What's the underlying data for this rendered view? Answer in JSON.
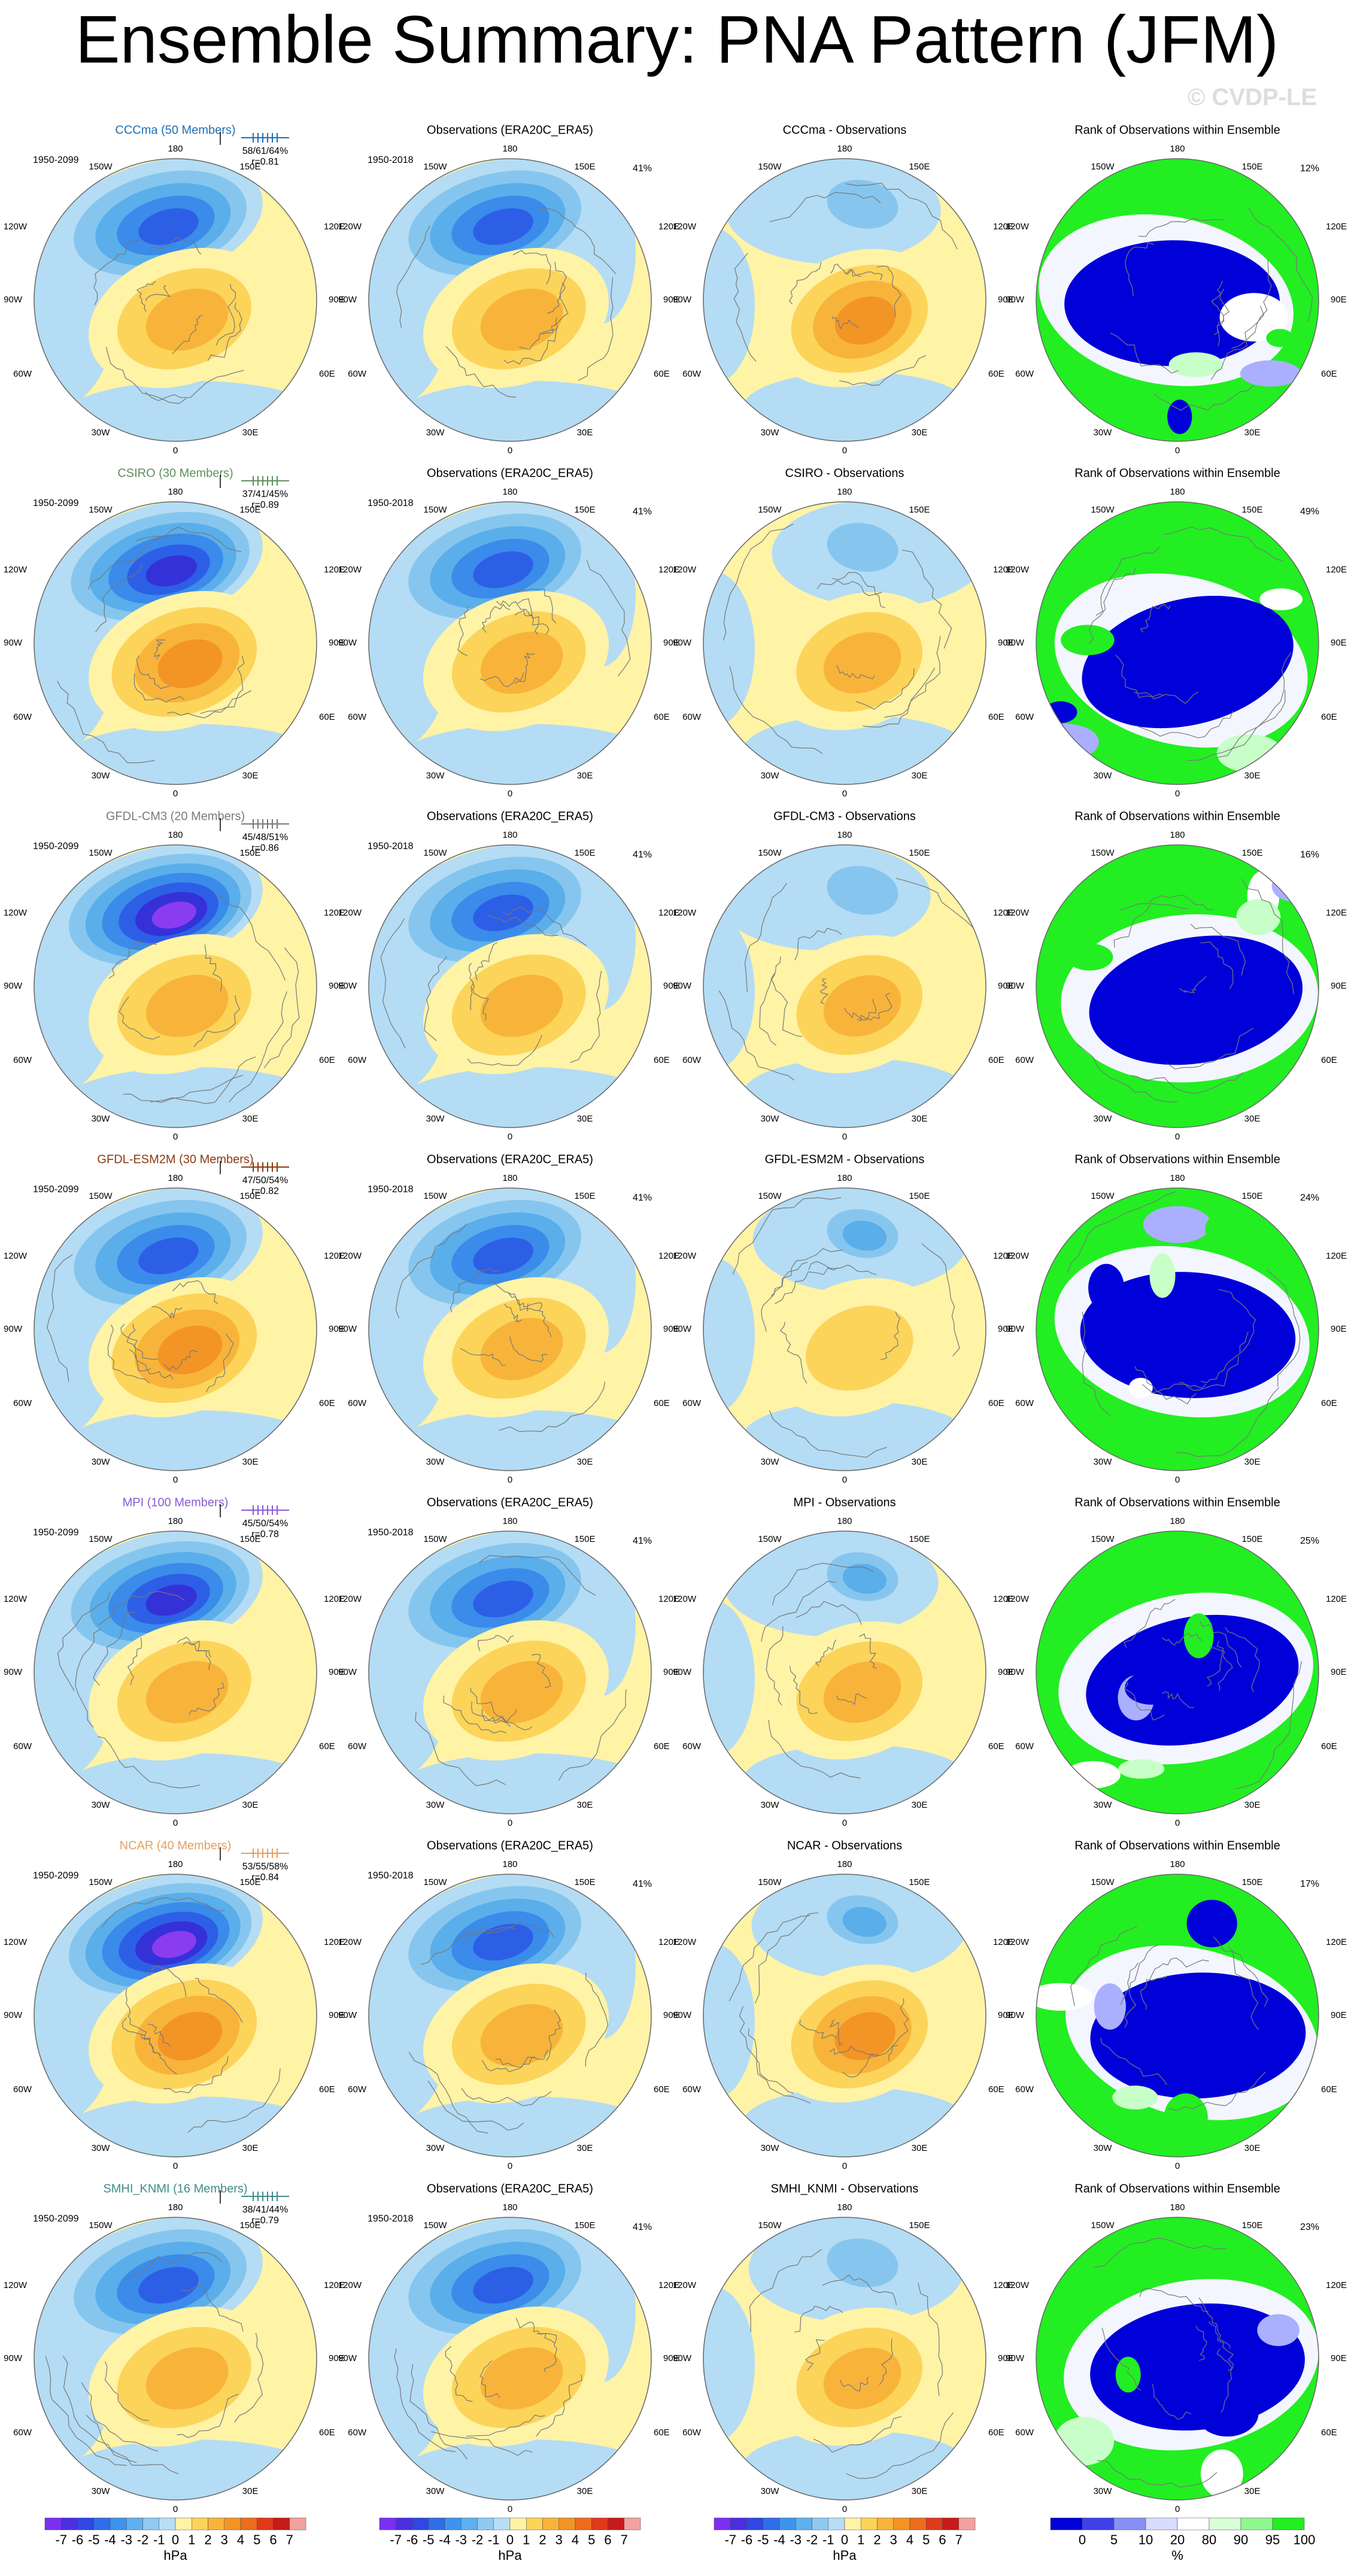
{
  "title": "Ensemble Summary: PNA Pattern (JFM)",
  "watermark": "© CVDP-LE",
  "obs_title": "Observations (ERA20C_ERA5)",
  "obs_period": "1950-2018",
  "obs_pct": "41%",
  "rank_title": "Rank of Observations within Ensemble",
  "rows": [
    {
      "model": "CCCma (50 Members)",
      "color": "#1f6fb4",
      "period": "1950-2099",
      "stats": "58/61/64%",
      "r": "r=0.81",
      "diff_title": "CCCma - Observations",
      "rank_pct": "12%"
    },
    {
      "model": "CSIRO (30 Members)",
      "color": "#5f8f5f",
      "period": "1950-2099",
      "stats": "37/41/45%",
      "r": "r=0.89",
      "diff_title": "CSIRO - Observations",
      "rank_pct": "49%"
    },
    {
      "model": "GFDL-CM3 (20 Members)",
      "color": "#7a7a7a",
      "period": "1950-2099",
      "stats": "45/48/51%",
      "r": "r=0.86",
      "diff_title": "GFDL-CM3 - Observations",
      "rank_pct": "16%"
    },
    {
      "model": "GFDL-ESM2M (30 Members)",
      "color": "#8b3a12",
      "period": "1950-2099",
      "stats": "47/50/54%",
      "r": "r=0.82",
      "diff_title": "GFDL-ESM2M - Observations",
      "rank_pct": "24%"
    },
    {
      "model": "MPI (100 Members)",
      "color": "#8a5ad6",
      "period": "1950-2099",
      "stats": "45/50/54%",
      "r": "r=0.78",
      "diff_title": "MPI - Observations",
      "rank_pct": "25%"
    },
    {
      "model": "NCAR (40 Members)",
      "color": "#e3a066",
      "period": "1950-2099",
      "stats": "53/55/58%",
      "r": "r=0.84",
      "diff_title": "NCAR - Observations",
      "rank_pct": "17%"
    },
    {
      "model": "SMHI_KNMI (16 Members)",
      "color": "#3f8c8c",
      "period": "1950-2099",
      "stats": "38/41/44%",
      "r": "r=0.79",
      "diff_title": "SMHI_KNMI - Observations",
      "rank_pct": "23%"
    }
  ],
  "map_labels": [
    "180",
    "150W",
    "150E",
    "120W",
    "120E",
    "90W",
    "90E",
    "60W",
    "60E",
    "30W",
    "30E",
    "0"
  ],
  "colorbars": {
    "hpa": {
      "ticks": [
        "-7",
        "-6",
        "-5",
        "-4",
        "-3",
        "-2",
        "-1",
        "0",
        "1",
        "2",
        "3",
        "4",
        "5",
        "6",
        "7"
      ],
      "unit": "hPa"
    },
    "rank": {
      "ticks": [
        "0",
        "5",
        "10",
        "20",
        "80",
        "90",
        "95",
        "100"
      ],
      "unit": "%"
    }
  }
}
